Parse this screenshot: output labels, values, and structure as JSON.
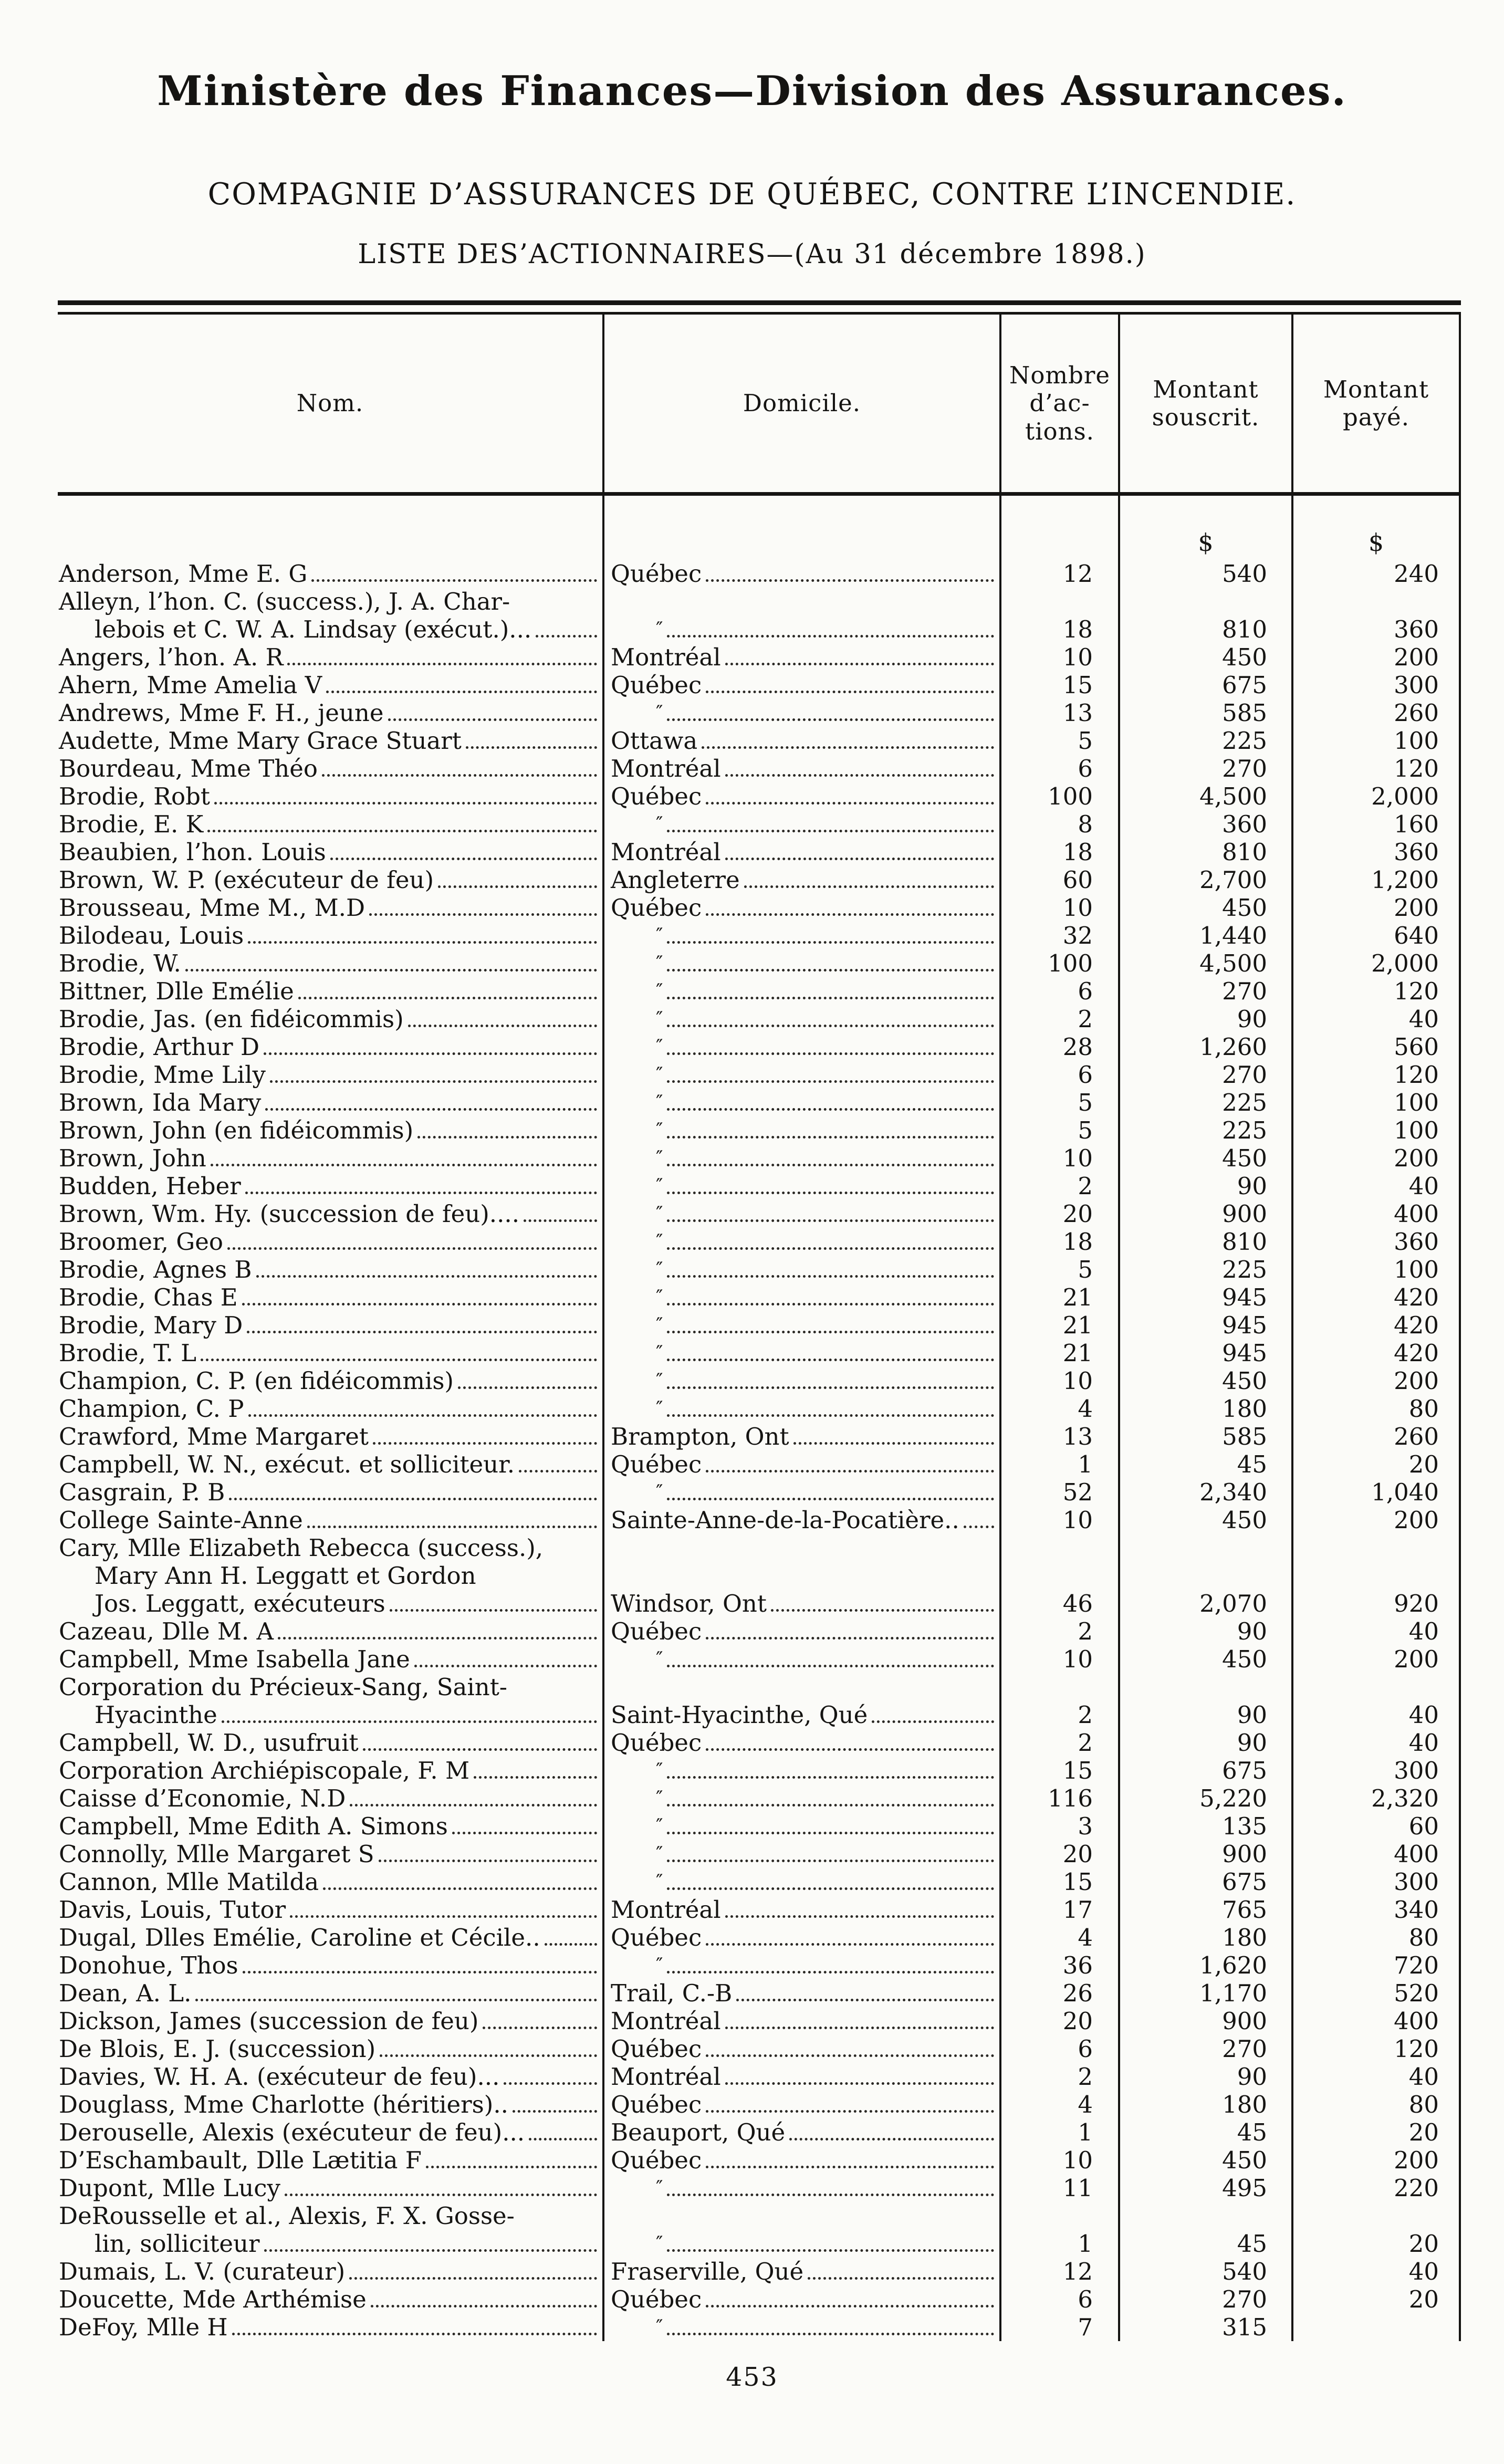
{
  "page": {
    "title_line1": "Ministère des Finances—Division des Assurances.",
    "title_line2": "COMPAGNIE D’ASSURANCES DE QUÉBEC, CONTRE L’INCENDIE.",
    "title_line3": "LISTE DES’ACTIONNAIRES—(Au 31 décembre 1898.)",
    "page_number": "453"
  },
  "table": {
    "columns": [
      {
        "id": "nom",
        "lines": [
          "Nom."
        ]
      },
      {
        "id": "domicile",
        "lines": [
          "Domicile."
        ]
      },
      {
        "id": "actions",
        "lines": [
          "Nombre",
          "d’ac-",
          "tions."
        ]
      },
      {
        "id": "souscrit",
        "lines": [
          "Montant",
          "souscrit."
        ]
      },
      {
        "id": "paye",
        "lines": [
          "Montant",
          "payé."
        ]
      }
    ],
    "currency_symbol": "$",
    "ditto_mark": "″",
    "rows": [
      {
        "name_lines": [
          "Anderson, Mme E. G"
        ],
        "domicile": "Québec",
        "actions": "12",
        "souscrit": "540",
        "paye": "240"
      },
      {
        "name_lines": [
          "Alleyn, l’hon. C. (success.), J. A. Char-",
          "lebois et C. W. A. Lindsay (exécut.)..."
        ],
        "domicile": "″",
        "actions": "18",
        "souscrit": "810",
        "paye": "360"
      },
      {
        "name_lines": [
          "Angers, l’hon. A. R"
        ],
        "domicile": "Montréal",
        "actions": "10",
        "souscrit": "450",
        "paye": "200"
      },
      {
        "name_lines": [
          "Ahern, Mme Amelia V"
        ],
        "domicile": "Québec",
        "actions": "15",
        "souscrit": "675",
        "paye": "300"
      },
      {
        "name_lines": [
          "Andrews, Mme F. H., jeune"
        ],
        "domicile": "″",
        "actions": "13",
        "souscrit": "585",
        "paye": "260"
      },
      {
        "name_lines": [
          "Audette, Mme Mary Grace Stuart"
        ],
        "domicile": "Ottawa",
        "actions": "5",
        "souscrit": "225",
        "paye": "100"
      },
      {
        "name_lines": [
          "Bourdeau, Mme Théo"
        ],
        "domicile": "Montréal",
        "actions": "6",
        "souscrit": "270",
        "paye": "120"
      },
      {
        "name_lines": [
          "Brodie, Robt"
        ],
        "domicile": "Québec",
        "actions": "100",
        "souscrit": "4,500",
        "paye": "2,000"
      },
      {
        "name_lines": [
          "Brodie, E. K"
        ],
        "domicile": "″",
        "actions": "8",
        "souscrit": "360",
        "paye": "160"
      },
      {
        "name_lines": [
          "Beaubien, l’hon. Louis"
        ],
        "domicile": "Montréal",
        "actions": "18",
        "souscrit": "810",
        "paye": "360"
      },
      {
        "name_lines": [
          "Brown, W. P. (exécuteur de feu)"
        ],
        "domicile": "Angleterre",
        "actions": "60",
        "souscrit": "2,700",
        "paye": "1,200"
      },
      {
        "name_lines": [
          "Brousseau, Mme M., M.D"
        ],
        "domicile": "Québec",
        "actions": "10",
        "souscrit": "450",
        "paye": "200"
      },
      {
        "name_lines": [
          "Bilodeau, Louis"
        ],
        "domicile": "″",
        "actions": "32",
        "souscrit": "1,440",
        "paye": "640"
      },
      {
        "name_lines": [
          "Brodie, W."
        ],
        "domicile": "″",
        "actions": "100",
        "souscrit": "4,500",
        "paye": "2,000"
      },
      {
        "name_lines": [
          "Bittner, Dlle Emélie"
        ],
        "domicile": "″",
        "actions": "6",
        "souscrit": "270",
        "paye": "120"
      },
      {
        "name_lines": [
          "Brodie, Jas. (en fidéicommis)"
        ],
        "domicile": "″",
        "actions": "2",
        "souscrit": "90",
        "paye": "40"
      },
      {
        "name_lines": [
          "Brodie, Arthur D"
        ],
        "domicile": "″",
        "actions": "28",
        "souscrit": "1,260",
        "paye": "560"
      },
      {
        "name_lines": [
          "Brodie, Mme Lily"
        ],
        "domicile": "″",
        "actions": "6",
        "souscrit": "270",
        "paye": "120"
      },
      {
        "name_lines": [
          "Brown, Ida Mary"
        ],
        "domicile": "″",
        "actions": "5",
        "souscrit": "225",
        "paye": "100"
      },
      {
        "name_lines": [
          "Brown, John (en fidéicommis)"
        ],
        "domicile": "″",
        "actions": "5",
        "souscrit": "225",
        "paye": "100"
      },
      {
        "name_lines": [
          "Brown, John"
        ],
        "domicile": "″",
        "actions": "10",
        "souscrit": "450",
        "paye": "200"
      },
      {
        "name_lines": [
          "Budden, Heber"
        ],
        "domicile": "″",
        "actions": "2",
        "souscrit": "90",
        "paye": "40"
      },
      {
        "name_lines": [
          "Brown, Wm. Hy. (succession de feu)...."
        ],
        "domicile": "″",
        "actions": "20",
        "souscrit": "900",
        "paye": "400"
      },
      {
        "name_lines": [
          "Broomer, Geo"
        ],
        "domicile": "″",
        "actions": "18",
        "souscrit": "810",
        "paye": "360"
      },
      {
        "name_lines": [
          "Brodie, Agnes B"
        ],
        "domicile": "″",
        "actions": "5",
        "souscrit": "225",
        "paye": "100"
      },
      {
        "name_lines": [
          "Brodie, Chas E"
        ],
        "domicile": "″",
        "actions": "21",
        "souscrit": "945",
        "paye": "420"
      },
      {
        "name_lines": [
          "Brodie, Mary D"
        ],
        "domicile": "″",
        "actions": "21",
        "souscrit": "945",
        "paye": "420"
      },
      {
        "name_lines": [
          "Brodie, T. L"
        ],
        "domicile": "″",
        "actions": "21",
        "souscrit": "945",
        "paye": "420"
      },
      {
        "name_lines": [
          "Champion, C. P. (en fidéicommis)"
        ],
        "domicile": "″",
        "actions": "10",
        "souscrit": "450",
        "paye": "200"
      },
      {
        "name_lines": [
          "Champion, C. P"
        ],
        "domicile": "″",
        "actions": "4",
        "souscrit": "180",
        "paye": "80"
      },
      {
        "name_lines": [
          "Crawford, Mme Margaret"
        ],
        "domicile": "Brampton, Ont",
        "actions": "13",
        "souscrit": "585",
        "paye": "260"
      },
      {
        "name_lines": [
          "Campbell, W. N., exécut. et solliciteur."
        ],
        "domicile": "Québec",
        "actions": "1",
        "souscrit": "45",
        "paye": "20"
      },
      {
        "name_lines": [
          "Casgrain, P. B"
        ],
        "domicile": "″",
        "actions": "52",
        "souscrit": "2,340",
        "paye": "1,040"
      },
      {
        "name_lines": [
          "College Sainte-Anne"
        ],
        "domicile": "Sainte-Anne-de-la-Pocatière..",
        "actions": "10",
        "souscrit": "450",
        "paye": "200"
      },
      {
        "name_lines": [
          "Cary,  Mlle Elizabeth Rebecca (success.),",
          "Mary  Ann  H.  Leggatt  et  Gordon",
          "Jos. Leggatt, exécuteurs"
        ],
        "domicile": "Windsor, Ont",
        "actions": "46",
        "souscrit": "2,070",
        "paye": "920"
      },
      {
        "name_lines": [
          "Cazeau, Dlle M. A"
        ],
        "domicile": "Québec",
        "actions": "2",
        "souscrit": "90",
        "paye": "40"
      },
      {
        "name_lines": [
          "Campbell, Mme Isabella Jane"
        ],
        "domicile": "″",
        "actions": "10",
        "souscrit": "450",
        "paye": "200"
      },
      {
        "name_lines": [
          "Corporation  du  Précieux-Sang,  Saint-",
          "Hyacinthe"
        ],
        "domicile": "Saint-Hyacinthe, Qué",
        "actions": "2",
        "souscrit": "90",
        "paye": "40"
      },
      {
        "name_lines": [
          "Campbell, W. D., usufruit"
        ],
        "domicile": "Québec",
        "actions": "2",
        "souscrit": "90",
        "paye": "40"
      },
      {
        "name_lines": [
          "Corporation Archiépiscopale, F. M"
        ],
        "domicile": "″",
        "actions": "15",
        "souscrit": "675",
        "paye": "300"
      },
      {
        "name_lines": [
          "Caisse d’Economie, N.D"
        ],
        "domicile": "″",
        "actions": "116",
        "souscrit": "5,220",
        "paye": "2,320"
      },
      {
        "name_lines": [
          "Campbell, Mme Edith A. Simons"
        ],
        "domicile": "″",
        "actions": "3",
        "souscrit": "135",
        "paye": "60"
      },
      {
        "name_lines": [
          "Connolly, Mlle Margaret S"
        ],
        "domicile": "″",
        "actions": "20",
        "souscrit": "900",
        "paye": "400"
      },
      {
        "name_lines": [
          "Cannon, Mlle Matilda"
        ],
        "domicile": "″",
        "actions": "15",
        "souscrit": "675",
        "paye": "300"
      },
      {
        "name_lines": [
          "Davis, Louis, Tutor"
        ],
        "domicile": "Montréal",
        "actions": "17",
        "souscrit": "765",
        "paye": "340"
      },
      {
        "name_lines": [
          "Dugal, Dlles Emélie, Caroline et Cécile.."
        ],
        "domicile": "Québec",
        "actions": "4",
        "souscrit": "180",
        "paye": "80"
      },
      {
        "name_lines": [
          "Donohue, Thos"
        ],
        "domicile": "″",
        "actions": "36",
        "souscrit": "1,620",
        "paye": "720"
      },
      {
        "name_lines": [
          "Dean, A. L."
        ],
        "domicile": "Trail, C.-B",
        "actions": "26",
        "souscrit": "1,170",
        "paye": "520"
      },
      {
        "name_lines": [
          "Dickson, James (succession de feu)"
        ],
        "domicile": "Montréal",
        "actions": "20",
        "souscrit": "900",
        "paye": "400"
      },
      {
        "name_lines": [
          "De Blois, E. J. (succession)"
        ],
        "domicile": "Québec",
        "actions": "6",
        "souscrit": "270",
        "paye": "120"
      },
      {
        "name_lines": [
          "Davies, W. H. A. (exécuteur de feu)..."
        ],
        "domicile": "Montréal",
        "actions": "2",
        "souscrit": "90",
        "paye": "40"
      },
      {
        "name_lines": [
          "Douglass, Mme Charlotte (héritiers).."
        ],
        "domicile": "Québec",
        "actions": "4",
        "souscrit": "180",
        "paye": "80"
      },
      {
        "name_lines": [
          "Derouselle, Alexis (exécuteur de feu)..."
        ],
        "domicile": "Beauport, Qué",
        "actions": "1",
        "souscrit": "45",
        "paye": "20"
      },
      {
        "name_lines": [
          "D’Eschambault, Dlle Lætitia F"
        ],
        "domicile": "Québec",
        "actions": "10",
        "souscrit": "450",
        "paye": "200"
      },
      {
        "name_lines": [
          "Dupont, Mlle Lucy"
        ],
        "domicile": "″",
        "actions": "11",
        "souscrit": "495",
        "paye": "220"
      },
      {
        "name_lines": [
          "DeRousselle et al., Alexis, F. X. Gosse-",
          "lin, solliciteur"
        ],
        "domicile": "″",
        "actions": "1",
        "souscrit": "45",
        "paye": "20"
      },
      {
        "name_lines": [
          "Dumais, L. V. (curateur)"
        ],
        "domicile": "Fraserville, Qué",
        "actions": "12",
        "souscrit": "540",
        "paye": "40"
      },
      {
        "name_lines": [
          "Doucette, Mde Arthémise"
        ],
        "domicile": "Québec",
        "actions": "6",
        "souscrit": "270",
        "paye": "20"
      },
      {
        "name_lines": [
          "DeFoy, Mlle H"
        ],
        "domicile": "″",
        "actions": "7",
        "souscrit": "315",
        "paye": ""
      }
    ]
  }
}
